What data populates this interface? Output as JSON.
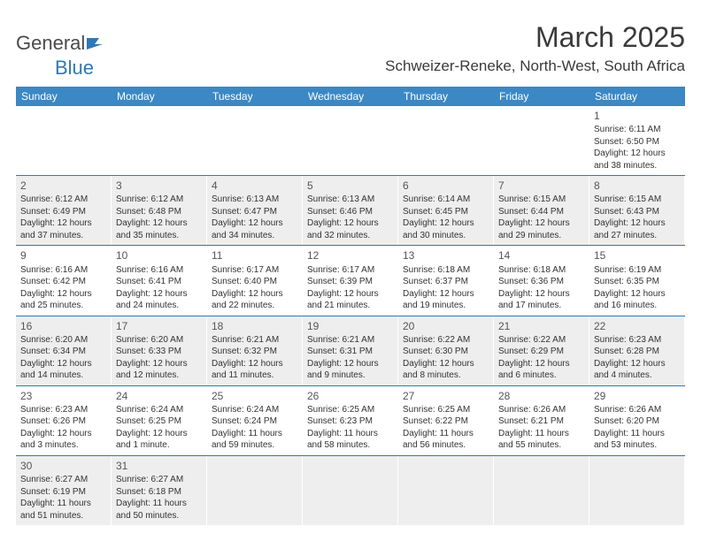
{
  "logo": {
    "text_general": "General",
    "text_blue": "Blue"
  },
  "title": "March 2025",
  "location": "Schweizer-Reneke, North-West, South Africa",
  "colors": {
    "header_bg": "#3b88c4",
    "header_text": "#ffffff",
    "shade_bg": "#eeeeee",
    "border": "#2f78b7",
    "text": "#333333"
  },
  "weekdays": [
    "Sunday",
    "Monday",
    "Tuesday",
    "Wednesday",
    "Thursday",
    "Friday",
    "Saturday"
  ],
  "weeks": [
    [
      {
        "n": "",
        "sr": "",
        "ss": "",
        "dl": ""
      },
      {
        "n": "",
        "sr": "",
        "ss": "",
        "dl": ""
      },
      {
        "n": "",
        "sr": "",
        "ss": "",
        "dl": ""
      },
      {
        "n": "",
        "sr": "",
        "ss": "",
        "dl": ""
      },
      {
        "n": "",
        "sr": "",
        "ss": "",
        "dl": ""
      },
      {
        "n": "",
        "sr": "",
        "ss": "",
        "dl": ""
      },
      {
        "n": "1",
        "sr": "Sunrise: 6:11 AM",
        "ss": "Sunset: 6:50 PM",
        "dl": "Daylight: 12 hours and 38 minutes."
      }
    ],
    [
      {
        "n": "2",
        "sr": "Sunrise: 6:12 AM",
        "ss": "Sunset: 6:49 PM",
        "dl": "Daylight: 12 hours and 37 minutes."
      },
      {
        "n": "3",
        "sr": "Sunrise: 6:12 AM",
        "ss": "Sunset: 6:48 PM",
        "dl": "Daylight: 12 hours and 35 minutes."
      },
      {
        "n": "4",
        "sr": "Sunrise: 6:13 AM",
        "ss": "Sunset: 6:47 PM",
        "dl": "Daylight: 12 hours and 34 minutes."
      },
      {
        "n": "5",
        "sr": "Sunrise: 6:13 AM",
        "ss": "Sunset: 6:46 PM",
        "dl": "Daylight: 12 hours and 32 minutes."
      },
      {
        "n": "6",
        "sr": "Sunrise: 6:14 AM",
        "ss": "Sunset: 6:45 PM",
        "dl": "Daylight: 12 hours and 30 minutes."
      },
      {
        "n": "7",
        "sr": "Sunrise: 6:15 AM",
        "ss": "Sunset: 6:44 PM",
        "dl": "Daylight: 12 hours and 29 minutes."
      },
      {
        "n": "8",
        "sr": "Sunrise: 6:15 AM",
        "ss": "Sunset: 6:43 PM",
        "dl": "Daylight: 12 hours and 27 minutes."
      }
    ],
    [
      {
        "n": "9",
        "sr": "Sunrise: 6:16 AM",
        "ss": "Sunset: 6:42 PM",
        "dl": "Daylight: 12 hours and 25 minutes."
      },
      {
        "n": "10",
        "sr": "Sunrise: 6:16 AM",
        "ss": "Sunset: 6:41 PM",
        "dl": "Daylight: 12 hours and 24 minutes."
      },
      {
        "n": "11",
        "sr": "Sunrise: 6:17 AM",
        "ss": "Sunset: 6:40 PM",
        "dl": "Daylight: 12 hours and 22 minutes."
      },
      {
        "n": "12",
        "sr": "Sunrise: 6:17 AM",
        "ss": "Sunset: 6:39 PM",
        "dl": "Daylight: 12 hours and 21 minutes."
      },
      {
        "n": "13",
        "sr": "Sunrise: 6:18 AM",
        "ss": "Sunset: 6:37 PM",
        "dl": "Daylight: 12 hours and 19 minutes."
      },
      {
        "n": "14",
        "sr": "Sunrise: 6:18 AM",
        "ss": "Sunset: 6:36 PM",
        "dl": "Daylight: 12 hours and 17 minutes."
      },
      {
        "n": "15",
        "sr": "Sunrise: 6:19 AM",
        "ss": "Sunset: 6:35 PM",
        "dl": "Daylight: 12 hours and 16 minutes."
      }
    ],
    [
      {
        "n": "16",
        "sr": "Sunrise: 6:20 AM",
        "ss": "Sunset: 6:34 PM",
        "dl": "Daylight: 12 hours and 14 minutes."
      },
      {
        "n": "17",
        "sr": "Sunrise: 6:20 AM",
        "ss": "Sunset: 6:33 PM",
        "dl": "Daylight: 12 hours and 12 minutes."
      },
      {
        "n": "18",
        "sr": "Sunrise: 6:21 AM",
        "ss": "Sunset: 6:32 PM",
        "dl": "Daylight: 12 hours and 11 minutes."
      },
      {
        "n": "19",
        "sr": "Sunrise: 6:21 AM",
        "ss": "Sunset: 6:31 PM",
        "dl": "Daylight: 12 hours and 9 minutes."
      },
      {
        "n": "20",
        "sr": "Sunrise: 6:22 AM",
        "ss": "Sunset: 6:30 PM",
        "dl": "Daylight: 12 hours and 8 minutes."
      },
      {
        "n": "21",
        "sr": "Sunrise: 6:22 AM",
        "ss": "Sunset: 6:29 PM",
        "dl": "Daylight: 12 hours and 6 minutes."
      },
      {
        "n": "22",
        "sr": "Sunrise: 6:23 AM",
        "ss": "Sunset: 6:28 PM",
        "dl": "Daylight: 12 hours and 4 minutes."
      }
    ],
    [
      {
        "n": "23",
        "sr": "Sunrise: 6:23 AM",
        "ss": "Sunset: 6:26 PM",
        "dl": "Daylight: 12 hours and 3 minutes."
      },
      {
        "n": "24",
        "sr": "Sunrise: 6:24 AM",
        "ss": "Sunset: 6:25 PM",
        "dl": "Daylight: 12 hours and 1 minute."
      },
      {
        "n": "25",
        "sr": "Sunrise: 6:24 AM",
        "ss": "Sunset: 6:24 PM",
        "dl": "Daylight: 11 hours and 59 minutes."
      },
      {
        "n": "26",
        "sr": "Sunrise: 6:25 AM",
        "ss": "Sunset: 6:23 PM",
        "dl": "Daylight: 11 hours and 58 minutes."
      },
      {
        "n": "27",
        "sr": "Sunrise: 6:25 AM",
        "ss": "Sunset: 6:22 PM",
        "dl": "Daylight: 11 hours and 56 minutes."
      },
      {
        "n": "28",
        "sr": "Sunrise: 6:26 AM",
        "ss": "Sunset: 6:21 PM",
        "dl": "Daylight: 11 hours and 55 minutes."
      },
      {
        "n": "29",
        "sr": "Sunrise: 6:26 AM",
        "ss": "Sunset: 6:20 PM",
        "dl": "Daylight: 11 hours and 53 minutes."
      }
    ],
    [
      {
        "n": "30",
        "sr": "Sunrise: 6:27 AM",
        "ss": "Sunset: 6:19 PM",
        "dl": "Daylight: 11 hours and 51 minutes."
      },
      {
        "n": "31",
        "sr": "Sunrise: 6:27 AM",
        "ss": "Sunset: 6:18 PM",
        "dl": "Daylight: 11 hours and 50 minutes."
      },
      {
        "n": "",
        "sr": "",
        "ss": "",
        "dl": ""
      },
      {
        "n": "",
        "sr": "",
        "ss": "",
        "dl": ""
      },
      {
        "n": "",
        "sr": "",
        "ss": "",
        "dl": ""
      },
      {
        "n": "",
        "sr": "",
        "ss": "",
        "dl": ""
      },
      {
        "n": "",
        "sr": "",
        "ss": "",
        "dl": ""
      }
    ]
  ]
}
